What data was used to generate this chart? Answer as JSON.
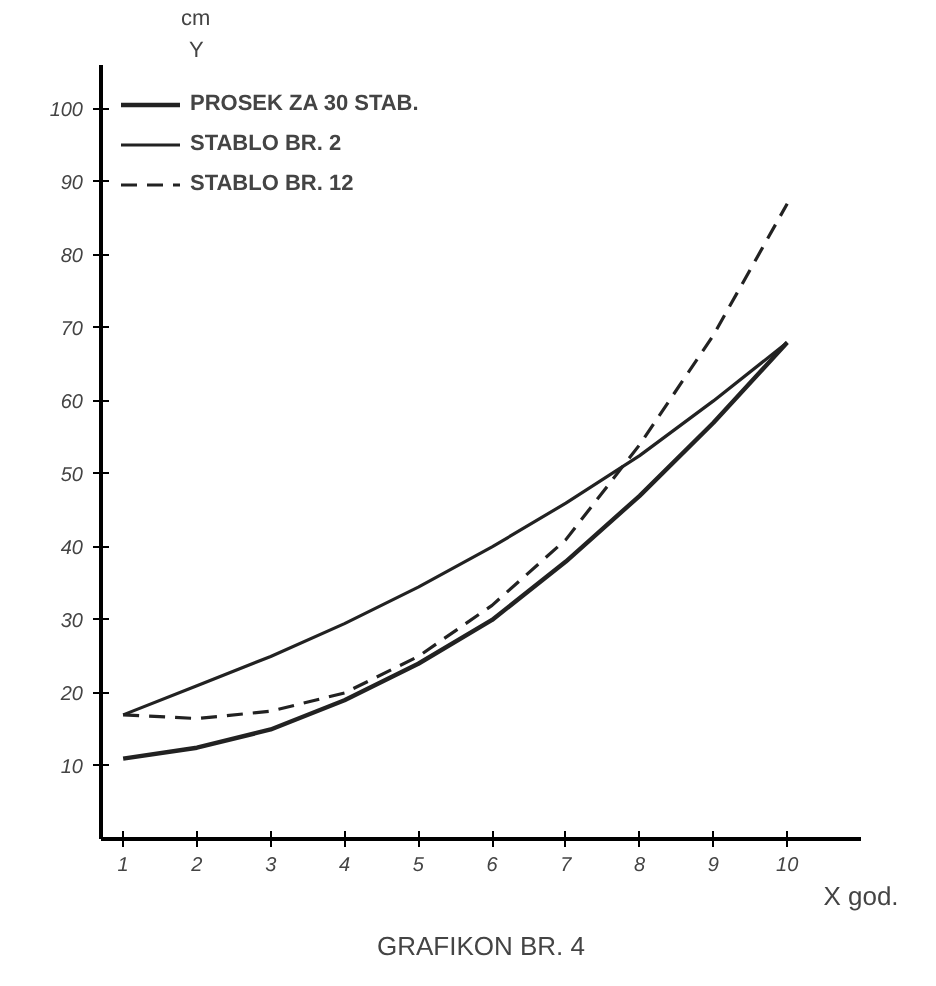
{
  "chart_data": {
    "type": "line",
    "title": "GRAFIKON BR. 4",
    "xlabel": "X god.",
    "ylabel": "Y",
    "annotations": [
      "cm"
    ],
    "x": [
      1,
      2,
      3,
      4,
      5,
      6,
      7,
      8,
      9,
      10
    ],
    "series": [
      {
        "name": "PROSEK ZA 30 STAB.",
        "color": "#222222",
        "line_style": "solid",
        "values": [
          11,
          12.5,
          15,
          19,
          24,
          30,
          38,
          47,
          57,
          68
        ]
      },
      {
        "name": "STABLO BR. 2",
        "color": "#222222",
        "line_style": "solid",
        "values": [
          17,
          21,
          25,
          29.5,
          34.5,
          40,
          46,
          52.5,
          60,
          68
        ]
      },
      {
        "name": "STABLO BR. 12",
        "color": "#222222",
        "line_style": "dashed",
        "values": [
          17,
          16.5,
          17.5,
          20,
          25,
          32,
          41,
          54,
          69,
          87
        ]
      }
    ],
    "xlim": [
      0.7,
      11
    ],
    "ylim": [
      0,
      106
    ],
    "xticks": [
      1,
      2,
      3,
      4,
      5,
      6,
      7,
      8,
      9,
      10
    ],
    "yticks": [
      10,
      20,
      30,
      40,
      50,
      60,
      70,
      80,
      90,
      100
    ],
    "grid": false,
    "legend": "top left",
    "marker": "none"
  }
}
